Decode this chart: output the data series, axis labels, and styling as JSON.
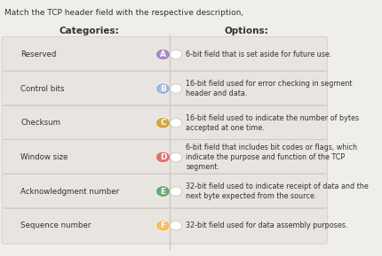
{
  "title": "Match the TCP header field with the respective description,",
  "col_left_header": "Categories:",
  "col_right_header": "Options:",
  "background_color": "#f0eeeb",
  "box_color": "#e8e4df",
  "box_edge_color": "#d0cbc5",
  "header_box_color": "#e0dbd5",
  "categories": [
    "Reserved",
    "Control bits",
    "Checksum",
    "Window size",
    "Acknowledgment number",
    "Sequence number"
  ],
  "circle_labels": [
    "A",
    "B",
    "C",
    "D",
    "E",
    "F"
  ],
  "circle_colors": [
    "#a78cbf",
    "#9db8d8",
    "#d4a843",
    "#e07070",
    "#6aaa78",
    "#f4c060"
  ],
  "options": [
    "6-bit field that is set aside for future use.",
    "16-bit field used for error checking in segment\nheader and data.",
    "16-bit field used to indicate the number of bytes\naccepted at one time.",
    "6-bit field that includes bit codes or flags, which\nindicate the purpose and function of the TCP\nsegment.",
    "32-bit field used to indicate receipt of data and the\nnext byte expected from the source.",
    "32-bit field used for data assembly purposes."
  ],
  "title_fontsize": 6.5,
  "header_fontsize": 7.5,
  "label_fontsize": 6.2,
  "option_fontsize": 5.8,
  "circle_fontsize": 6.5,
  "divider_color": "#c8c3be",
  "text_color": "#333333",
  "header_font_weight": "bold"
}
